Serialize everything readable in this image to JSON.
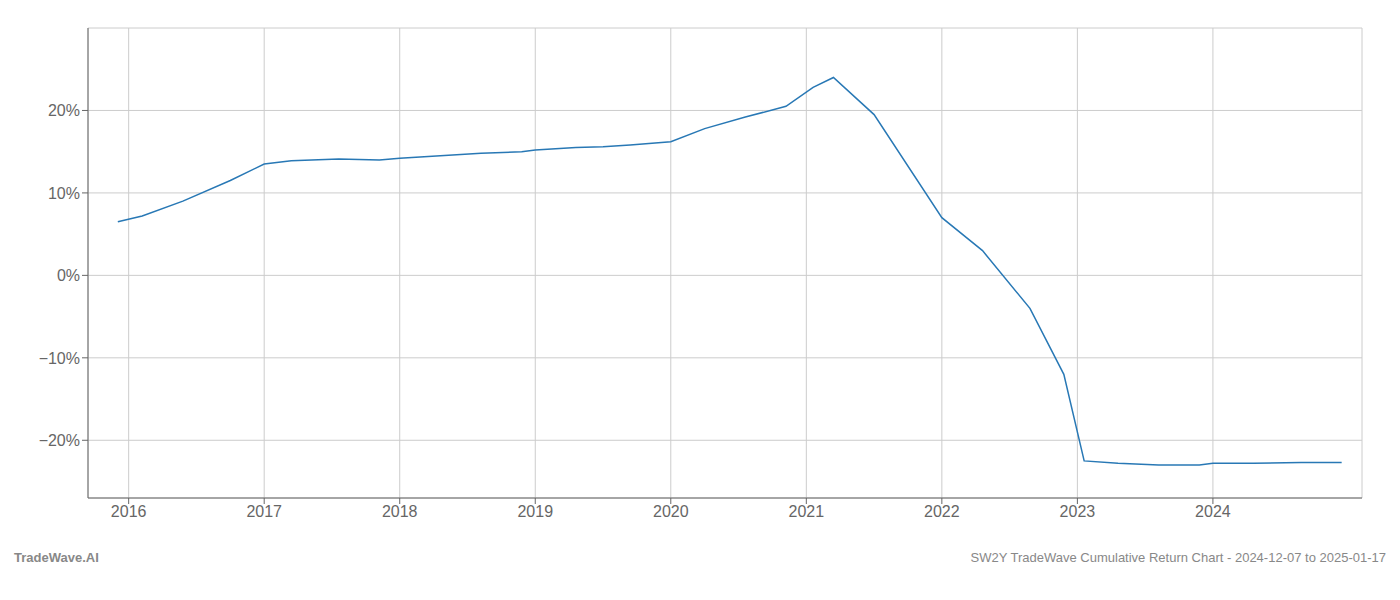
{
  "chart_data": {
    "type": "line",
    "x": [
      2015.92,
      2016.1,
      2016.4,
      2016.75,
      2017.0,
      2017.2,
      2017.55,
      2017.85,
      2018.0,
      2018.3,
      2018.6,
      2018.9,
      2019.0,
      2019.3,
      2019.5,
      2019.7,
      2020.0,
      2020.25,
      2020.55,
      2020.85,
      2021.05,
      2021.2,
      2021.5,
      2022.0,
      2022.3,
      2022.65,
      2022.9,
      2023.05,
      2023.3,
      2023.6,
      2023.9,
      2024.0,
      2024.3,
      2024.65,
      2024.95
    ],
    "values": [
      6.5,
      7.2,
      9.0,
      11.5,
      13.5,
      13.9,
      14.1,
      14.0,
      14.2,
      14.5,
      14.8,
      15.0,
      15.2,
      15.5,
      15.6,
      15.8,
      16.2,
      17.8,
      19.2,
      20.5,
      22.8,
      24.0,
      19.5,
      7.0,
      3.0,
      -4.0,
      -12.0,
      -22.5,
      -22.8,
      -23.0,
      -23.0,
      -22.8,
      -22.8,
      -22.7,
      -22.7
    ],
    "color": "#2878b5",
    "xlim": [
      2015.7,
      2025.1
    ],
    "ylim": [
      -27,
      30
    ],
    "xticks": [
      2016,
      2017,
      2018,
      2019,
      2020,
      2021,
      2022,
      2023,
      2024
    ],
    "yticks": [
      {
        "value": -20,
        "label": "−20%"
      },
      {
        "value": -10,
        "label": "−10%"
      },
      {
        "value": 0,
        "label": "0%"
      },
      {
        "value": 10,
        "label": "10%"
      },
      {
        "value": 20,
        "label": "20%"
      }
    ],
    "grid": true,
    "annotations": [
      "TradeWave.AI",
      "SW2Y TradeWave Cumulative Return Chart - 2024-12-07 to 2025-01-17"
    ]
  }
}
